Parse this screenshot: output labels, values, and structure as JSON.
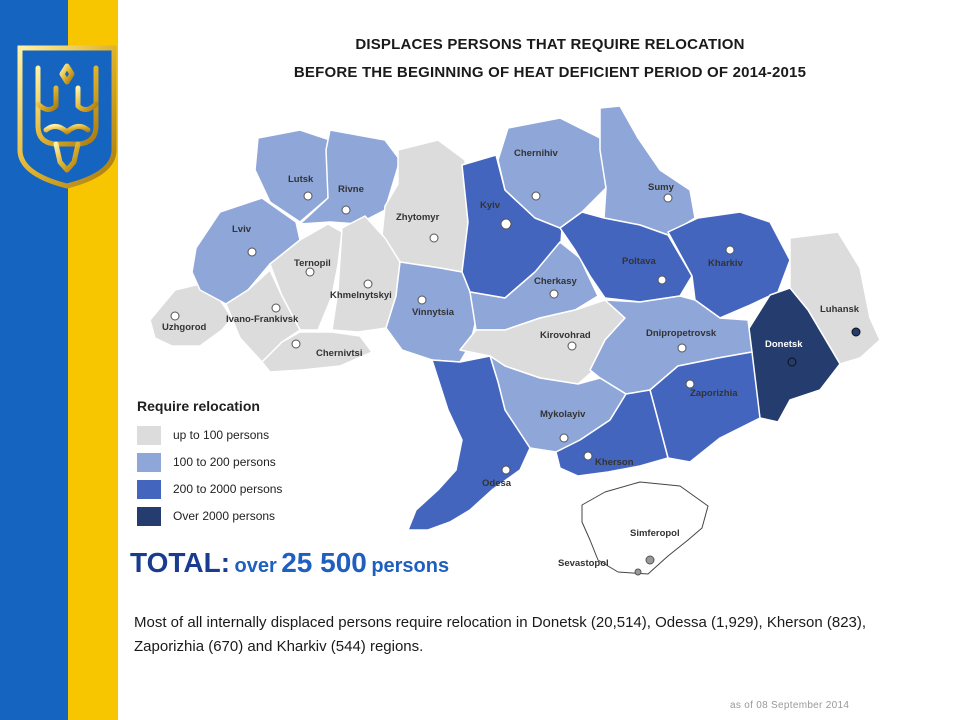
{
  "header": {
    "title_line1": "DISPLACES PERSONS THAT REQUIRE RELOCATION",
    "title_line2": "BEFORE THE BEGINNING OF HEAT DEFICIENT PERIOD OF 2014-2015"
  },
  "colors": {
    "flag_blue": "#1565c0",
    "flag_yellow": "#f7c600",
    "up_to_100": "#dcdcdc",
    "100_to_200": "#8ea6d8",
    "200_to_2000": "#4465be",
    "over_2000": "#253c6e"
  },
  "legend": {
    "title": "Require relocation",
    "items": [
      {
        "label": "up to 100 persons",
        "color": "#dcdcdc"
      },
      {
        "label": "100 to 200 persons",
        "color": "#8ea6d8"
      },
      {
        "label": "200 to 2000 persons",
        "color": "#4465be"
      },
      {
        "label": "Over 2000 persons",
        "color": "#253c6e"
      }
    ]
  },
  "regions": [
    {
      "name": "Uzhgorod",
      "category": "up to 100 persons"
    },
    {
      "name": "Lviv",
      "category": "100 to 200 persons"
    },
    {
      "name": "Lutsk",
      "category": "100 to 200 persons"
    },
    {
      "name": "Rivne",
      "category": "100 to 200 persons"
    },
    {
      "name": "Zhytomyr",
      "category": "up to 100 persons"
    },
    {
      "name": "Kyiv",
      "category": "200 to 2000 persons"
    },
    {
      "name": "Chernihiv",
      "category": "100 to 200 persons"
    },
    {
      "name": "Sumy",
      "category": "100 to 200 persons"
    },
    {
      "name": "Ternopil",
      "category": "up to 100 persons"
    },
    {
      "name": "Khmelnytskyi",
      "category": "up to 100 persons"
    },
    {
      "name": "Ivano-Frankivsk",
      "category": "up to 100 persons"
    },
    {
      "name": "Chernivtsi",
      "category": "up to 100 persons"
    },
    {
      "name": "Vinnytsia",
      "category": "100 to 200 persons"
    },
    {
      "name": "Cherkasy",
      "category": "100 to 200 persons"
    },
    {
      "name": "Poltava",
      "category": "200 to 2000 persons"
    },
    {
      "name": "Kharkiv",
      "category": "200 to 2000 persons"
    },
    {
      "name": "Luhansk",
      "category": "up to 100 persons"
    },
    {
      "name": "Donetsk",
      "category": "Over 2000 persons"
    },
    {
      "name": "Kirovohrad",
      "category": "up to 100 persons"
    },
    {
      "name": "Dnipropetrovsk",
      "category": "100 to 200 persons"
    },
    {
      "name": "Zaporizhia",
      "category": "200 to 2000 persons"
    },
    {
      "name": "Mykolayiv",
      "category": "100 to 200 persons"
    },
    {
      "name": "Kherson",
      "category": "200 to 2000 persons"
    },
    {
      "name": "Odesa",
      "category": "200 to 2000 persons"
    },
    {
      "name": "Simferopol",
      "category": "none"
    },
    {
      "name": "Sevastopol",
      "category": "none"
    }
  ],
  "total": {
    "label": "TOTAL:",
    "prefix": "over",
    "value": "25 500",
    "unit": "persons"
  },
  "summary": "Most of all internally displaced persons require relocation in Donetsk (20,514), Odessa (1,929), Kherson (823), Zaporizhia (670) and Kharkiv (544) regions.",
  "footer": {
    "as_of": "as of  08 September 2014"
  }
}
